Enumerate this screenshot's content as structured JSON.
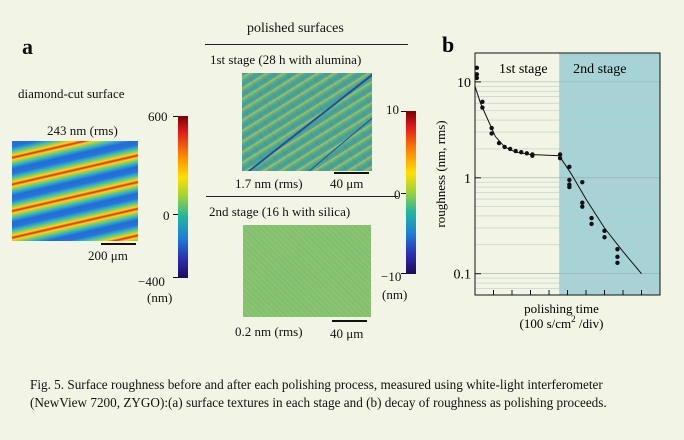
{
  "panel_a": {
    "letter": "a",
    "polished_header": "polished surfaces",
    "diamond_label": "diamond-cut surface",
    "diamond_rms": "243 nm (rms)",
    "diamond_scale": "200 μm",
    "colorbar_left": {
      "top": "600",
      "mid": "0",
      "bottom": "−400",
      "unit": "(nm)"
    },
    "stage1_title": "1st stage (28 h with   alumina)",
    "stage1_rms": "1.7 nm (rms)",
    "stage1_scale": "40 μm",
    "stage2_title": "2nd stage (16 h with silica)",
    "stage2_rms": "0.2 nm (rms)",
    "stage2_scale": "40 μm",
    "colorbar_right": {
      "top": "10",
      "mid": "0",
      "bottom": "−10",
      "unit": "(nm)"
    },
    "colors": {
      "shade": "#a6d3d6",
      "background": "#f2f5e6"
    }
  },
  "chart_data": {
    "type": "scatter",
    "panel_letter": "b",
    "ylabel": "roughness (nm, rms)",
    "xlabel": "polishing time",
    "xlabel_unit_pre": "(100 s/cm",
    "xlabel_unit_sup": "2",
    "xlabel_unit_post": " /div)",
    "yscale": "log",
    "ylim": [
      0.06,
      20
    ],
    "xlim": [
      0,
      10
    ],
    "yticks": [
      {
        "v": 10,
        "label": "10"
      },
      {
        "v": 1,
        "label": "1"
      },
      {
        "v": 0.1,
        "label": "0.1"
      }
    ],
    "region_labels": [
      "1st stage",
      "2nd stage"
    ],
    "stage_boundary_x": 4.55,
    "points": [
      [
        0.1,
        14
      ],
      [
        0.1,
        12
      ],
      [
        0.1,
        11
      ],
      [
        0.4,
        6.2
      ],
      [
        0.4,
        5.4
      ],
      [
        0.9,
        3.3
      ],
      [
        0.9,
        2.9
      ],
      [
        1.3,
        2.3
      ],
      [
        1.6,
        2.1
      ],
      [
        1.9,
        2.0
      ],
      [
        2.2,
        1.9
      ],
      [
        2.5,
        1.85
      ],
      [
        2.8,
        1.8
      ],
      [
        3.1,
        1.75
      ],
      [
        3.1,
        1.7
      ],
      [
        4.6,
        1.75
      ],
      [
        4.6,
        1.6
      ],
      [
        5.1,
        1.3
      ],
      [
        5.1,
        0.95
      ],
      [
        5.1,
        0.85
      ],
      [
        5.8,
        0.9
      ],
      [
        5.8,
        0.55
      ],
      [
        5.8,
        0.5
      ],
      [
        6.3,
        0.38
      ],
      [
        6.3,
        0.33
      ],
      [
        7.0,
        0.28
      ],
      [
        7.0,
        0.24
      ],
      [
        7.7,
        0.18
      ],
      [
        7.7,
        0.15
      ],
      [
        7.7,
        0.13
      ],
      [
        5.1,
        0.8
      ]
    ],
    "fit_line": [
      [
        0,
        9
      ],
      [
        0.3,
        6
      ],
      [
        0.7,
        4
      ],
      [
        1.1,
        2.7
      ],
      [
        1.6,
        2.1
      ],
      [
        2.2,
        1.85
      ],
      [
        3,
        1.75
      ],
      [
        4.55,
        1.7
      ],
      [
        5.2,
        1.1
      ],
      [
        6,
        0.6
      ],
      [
        7,
        0.3
      ],
      [
        8,
        0.17
      ],
      [
        9,
        0.1
      ]
    ]
  },
  "caption": "Fig. 5. Surface roughness before and after each polishing process, measured using white-light interferometer (NewView 7200, ZYGO):(a) surface textures in each stage and (b) decay of roughness as polishing proceeds."
}
